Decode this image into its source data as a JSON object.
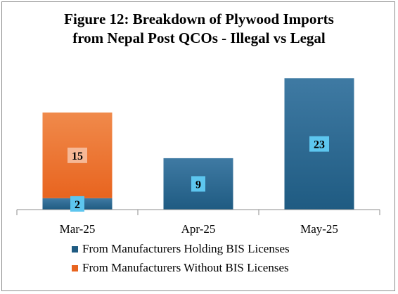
{
  "colors": {
    "licensed": "#1f5b82",
    "licensed_light": "#3f7aa3",
    "unlicensed": "#e8641f",
    "unlicensed_light": "#f08a4b",
    "label_box_licensed": "#5dc6ef",
    "label_box_unlicensed": "#f6b896"
  },
  "chart_data": {
    "type": "bar",
    "stacked": true,
    "title": "Figure 12: Breakdown of Plywood Imports from Nepal Post QCOs - Illegal vs Legal",
    "title_lines": [
      "Figure 12: Breakdown of Plywood Imports",
      "from Nepal Post QCOs - Illegal vs Legal"
    ],
    "categories": [
      "Mar-25",
      "Apr-25",
      "May-25"
    ],
    "series": [
      {
        "name": "From Manufacturers Holding BIS Licenses",
        "values": [
          2,
          9,
          23
        ]
      },
      {
        "name": "From Manufacturers Without BIS Licenses",
        "values": [
          15,
          0,
          0
        ]
      }
    ],
    "data_labels": [
      [
        "2",
        "9",
        "23"
      ],
      [
        "15",
        "",
        ""
      ]
    ],
    "ylim": [
      0,
      25
    ],
    "grid": false,
    "legend": "bottom"
  }
}
